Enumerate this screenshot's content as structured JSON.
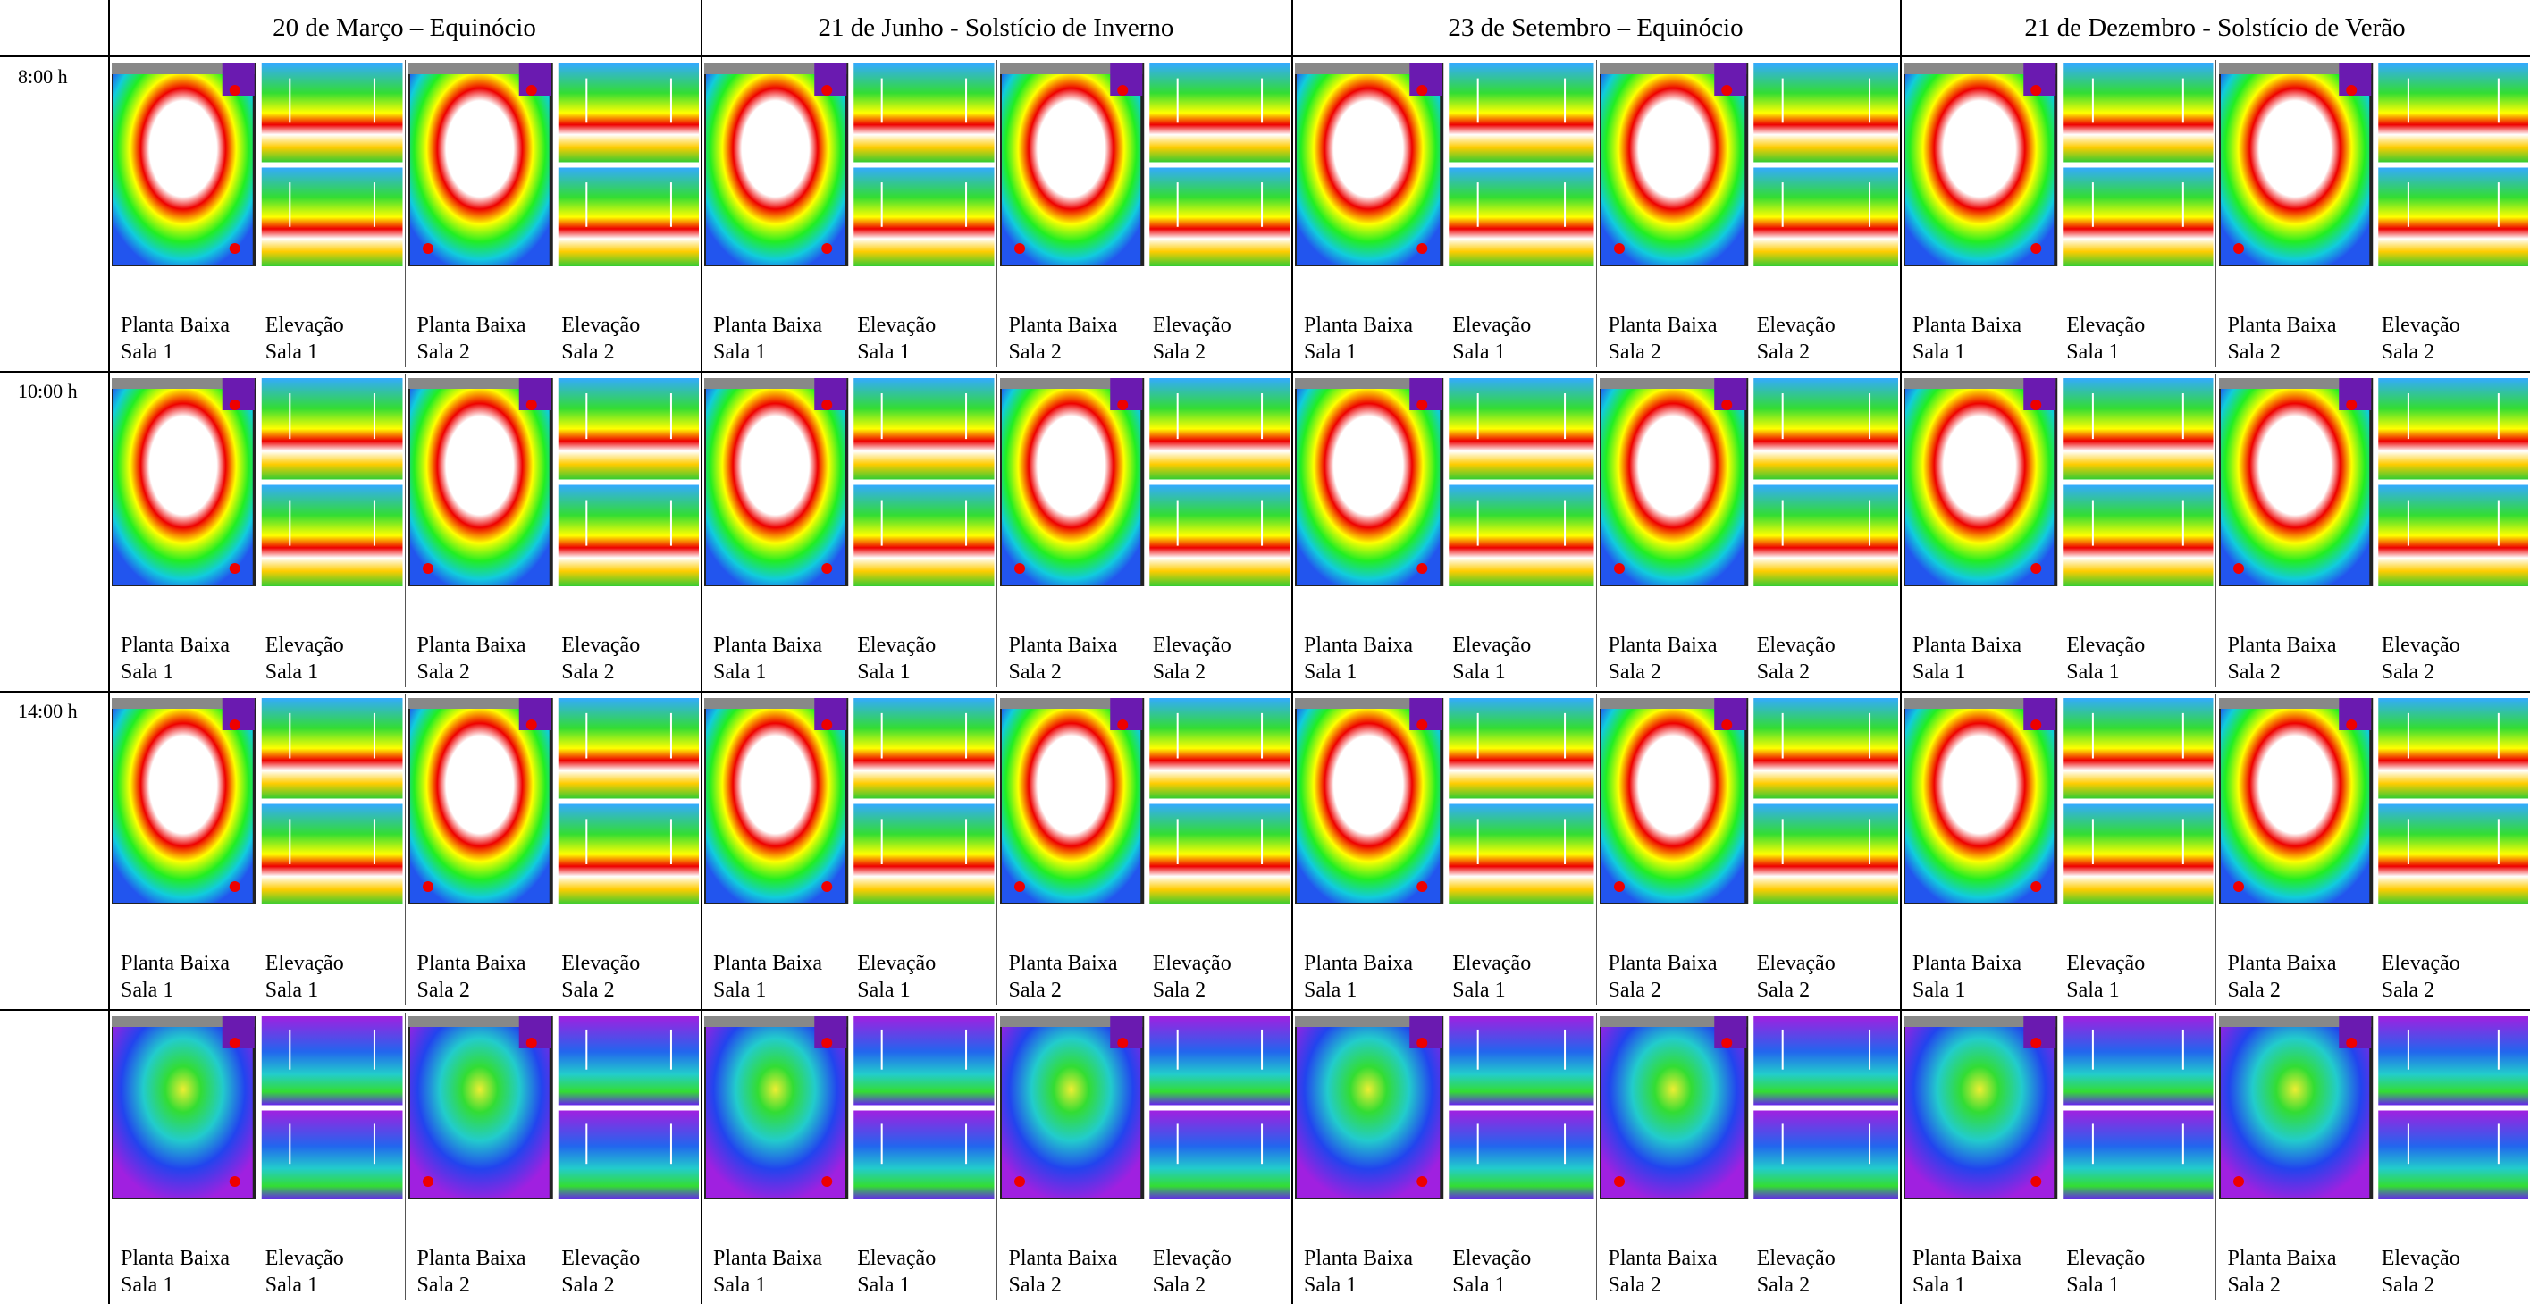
{
  "header": {
    "columns": [
      "20 de Março – Equinócio",
      "21 de Junho - Solstício de Inverno",
      "23 de Setembro – Equinócio",
      "21 de Dezembro - Solstício de Verão"
    ]
  },
  "rows": [
    {
      "time": "8:00 h",
      "cells": [
        {
          "plan": [
            "Planta Baixa",
            "Sala 1"
          ],
          "elevation": [
            "Elevação",
            "Sala 1"
          ]
        },
        {
          "plan": [
            "Planta Baixa",
            "Sala 2"
          ],
          "elevation": [
            "Elevação",
            "Sala 2"
          ]
        },
        {
          "plan": [
            "Planta Baixa",
            "Sala 1"
          ],
          "elevation": [
            "Elevação",
            "Sala 1"
          ]
        },
        {
          "plan": [
            "Planta Baixa",
            "Sala 2"
          ],
          "elevation": [
            "Elevação",
            "Sala 2"
          ]
        },
        {
          "plan": [
            "Planta Baixa",
            "Sala 1"
          ],
          "elevation": [
            "Elevação",
            "Sala 1"
          ]
        },
        {
          "plan": [
            "Planta Baixa",
            "Sala 2"
          ],
          "elevation": [
            "Elevação",
            "Sala 2"
          ]
        },
        {
          "plan": [
            "Planta Baixa",
            "Sala 1"
          ],
          "elevation": [
            "Elevação",
            "Sala 1"
          ]
        },
        {
          "plan": [
            "Planta Baixa",
            "Sala 2"
          ],
          "elevation": [
            "Elevação",
            "Sala 2"
          ]
        }
      ]
    },
    {
      "time": "10:00 h",
      "cells": [
        {
          "plan": [
            "Planta Baixa",
            "Sala 1"
          ],
          "elevation": [
            "Elevação",
            "Sala 1"
          ]
        },
        {
          "plan": [
            "Planta Baixa",
            "Sala 2"
          ],
          "elevation": [
            "Elevação",
            "Sala 2"
          ]
        },
        {
          "plan": [
            "Planta Baixa",
            "Sala 1"
          ],
          "elevation": [
            "Elevação",
            "Sala 1"
          ]
        },
        {
          "plan": [
            "Planta Baixa",
            "Sala 2"
          ],
          "elevation": [
            "Elevação",
            "Sala 2"
          ]
        },
        {
          "plan": [
            "Planta Baixa",
            "Sala 1"
          ],
          "elevation": [
            "Elevação",
            "Sala 1"
          ]
        },
        {
          "plan": [
            "Planta Baixa",
            "Sala 2"
          ],
          "elevation": [
            "Elevação",
            "Sala 2"
          ]
        },
        {
          "plan": [
            "Planta Baixa",
            "Sala 1"
          ],
          "elevation": [
            "Elevação",
            "Sala 1"
          ]
        },
        {
          "plan": [
            "Planta Baixa",
            "Sala 2"
          ],
          "elevation": [
            "Elevação",
            "Sala 2"
          ]
        }
      ]
    },
    {
      "time": "14:00 h",
      "cells": [
        {
          "plan": [
            "Planta Baixa",
            "Sala 1"
          ],
          "elevation": [
            "Elevação",
            "Sala 1"
          ]
        },
        {
          "plan": [
            "Planta Baixa",
            "Sala 2"
          ],
          "elevation": [
            "Elevação",
            "Sala 2"
          ]
        },
        {
          "plan": [
            "Planta Baixa",
            "Sala 1"
          ],
          "elevation": [
            "Elevação",
            "Sala 1"
          ]
        },
        {
          "plan": [
            "Planta Baixa",
            "Sala 2"
          ],
          "elevation": [
            "Elevação",
            "Sala 2"
          ]
        },
        {
          "plan": [
            "Planta Baixa",
            "Sala 1"
          ],
          "elevation": [
            "Elevação",
            "Sala 1"
          ]
        },
        {
          "plan": [
            "Planta Baixa",
            "Sala 2"
          ],
          "elevation": [
            "Elevação",
            "Sala 2"
          ]
        },
        {
          "plan": [
            "Planta Baixa",
            "Sala 1"
          ],
          "elevation": [
            "Elevação",
            "Sala 1"
          ]
        },
        {
          "plan": [
            "Planta Baixa",
            "Sala 2"
          ],
          "elevation": [
            "Elevação",
            "Sala 2"
          ]
        }
      ]
    },
    {
      "cells": [
        {
          "plan": [
            "Planta Baixa",
            "Sala 1"
          ],
          "elevation": [
            "Elevação",
            "Sala 1"
          ]
        },
        {
          "plan": [
            "Planta Baixa",
            "Sala 2"
          ],
          "elevation": [
            "Elevação",
            "Sala 2"
          ]
        },
        {
          "plan": [
            "Planta Baixa",
            "Sala 1"
          ],
          "elevation": [
            "Elevação",
            "Sala 1"
          ]
        },
        {
          "plan": [
            "Planta Baixa",
            "Sala 2"
          ],
          "elevation": [
            "Elevação",
            "Sala 2"
          ]
        },
        {
          "plan": [
            "Planta Baixa",
            "Sala 1"
          ],
          "elevation": [
            "Elevação",
            "Sala 1"
          ]
        },
        {
          "plan": [
            "Planta Baixa",
            "Sala 2"
          ],
          "elevation": [
            "Elevação",
            "Sala 2"
          ]
        },
        {
          "plan": [
            "Planta Baixa",
            "Sala 1"
          ],
          "elevation": [
            "Elevação",
            "Sala 1"
          ]
        },
        {
          "plan": [
            "Planta Baixa",
            "Sala 2"
          ],
          "elevation": [
            "Elevação",
            "Sala 2"
          ]
        }
      ]
    }
  ]
}
